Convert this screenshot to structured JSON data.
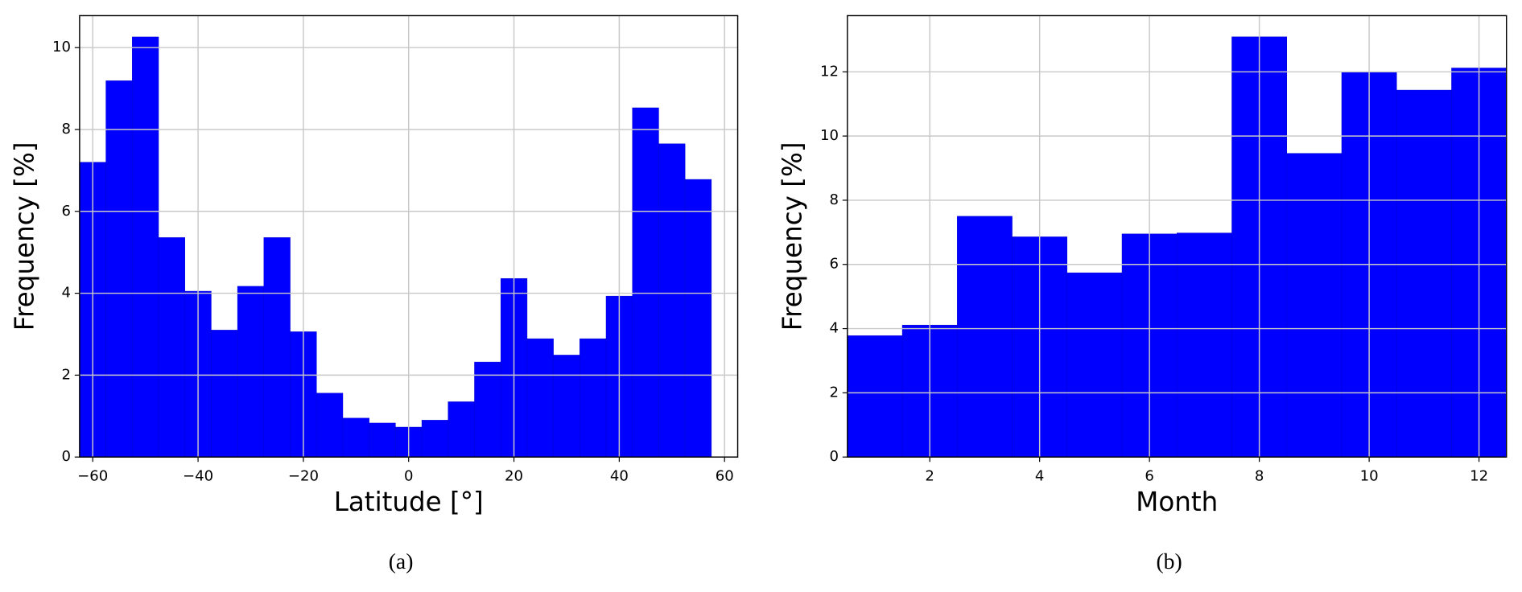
{
  "chart_data": [
    {
      "type": "histogram",
      "caption": "(a)",
      "xlabel": "Latitude [°]",
      "ylabel": "Frequency [%]",
      "color": "#0000ff",
      "grid": true,
      "bins": [
        -62.5,
        -57.5,
        -52.5,
        -47.5,
        -42.5,
        -37.5,
        -32.5,
        -27.5,
        -22.5,
        -17.5,
        -12.5,
        -7.5,
        -2.5,
        2.5,
        7.5,
        12.5,
        17.5,
        22.5,
        27.5,
        32.5,
        37.5,
        42.5,
        47.5,
        52.5,
        57.5
      ],
      "values": [
        7.2,
        9.19,
        10.26,
        5.36,
        4.05,
        3.1,
        4.17,
        5.36,
        3.06,
        1.56,
        0.95,
        0.83,
        0.73,
        0.9,
        1.35,
        2.32,
        4.36,
        2.89,
        2.49,
        2.89,
        3.93,
        8.53,
        7.65,
        6.78
      ],
      "xlim": [
        -62.5,
        62.5
      ],
      "ylim": [
        0,
        10.78
      ],
      "xticks": [
        {
          "value": -60,
          "label": "−60"
        },
        {
          "value": -40,
          "label": "−40"
        },
        {
          "value": -20,
          "label": "−20"
        },
        0,
        20,
        40,
        60
      ],
      "yticks": [
        0,
        2,
        4,
        6,
        8,
        10
      ]
    },
    {
      "type": "histogram",
      "caption": "(b)",
      "xlabel": "Month",
      "ylabel": "Frequency [%]",
      "color": "#0000ff",
      "grid": true,
      "bins": [
        0.5,
        1.5,
        2.5,
        3.5,
        4.5,
        5.5,
        6.5,
        7.5,
        8.5,
        9.5,
        10.5,
        11.5,
        12.5
      ],
      "values": [
        3.78,
        4.11,
        7.5,
        6.86,
        5.74,
        6.95,
        6.98,
        13.09,
        9.46,
        12.0,
        11.43,
        12.12
      ],
      "xlim": [
        0.5,
        12.5
      ],
      "ylim": [
        0,
        13.75
      ],
      "xticks": [
        2,
        4,
        6,
        8,
        10,
        12
      ],
      "yticks": [
        0,
        2,
        4,
        6,
        8,
        10,
        12
      ]
    }
  ]
}
